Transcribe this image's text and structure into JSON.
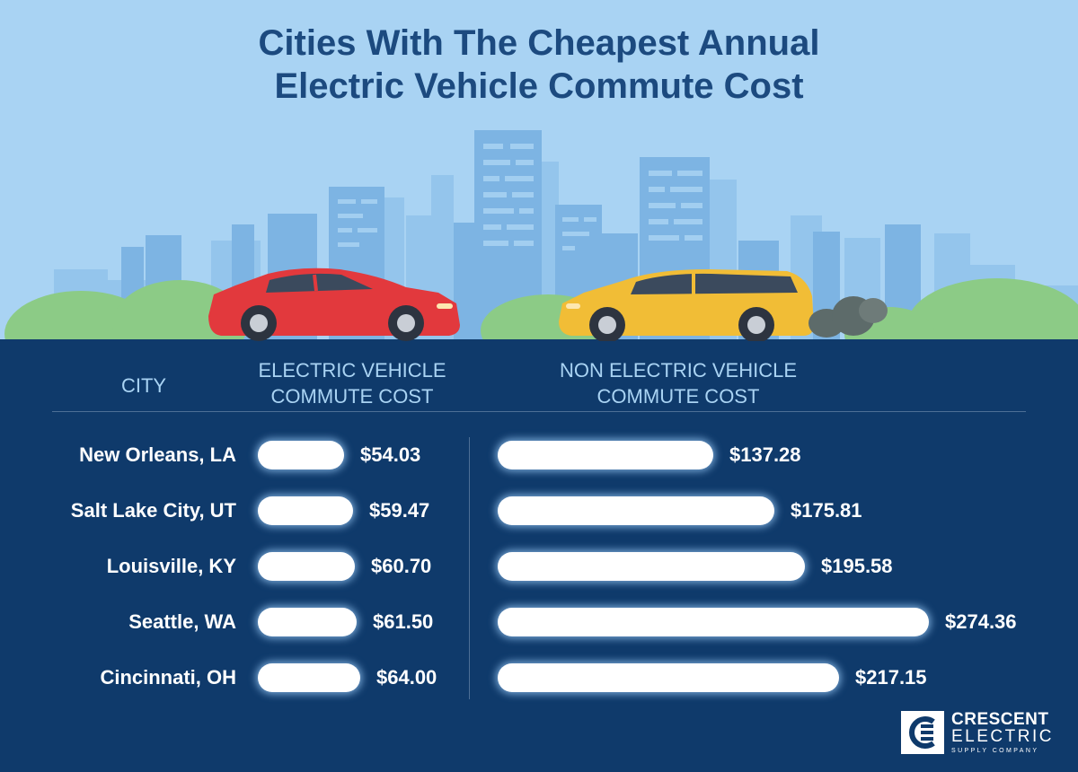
{
  "title": {
    "line1": "Cities With The Cheapest Annual",
    "line2": "Electric Vehicle Commute Cost"
  },
  "headers": {
    "city": "CITY",
    "ev_line1": "ELECTRIC VEHICLE",
    "ev_line2": "COMMUTE COST",
    "non_ev_line1": "NON ELECTRIC VEHICLE",
    "non_ev_line2": "COMMUTE COST"
  },
  "chart_data": {
    "type": "bar",
    "title": "Cities With The Cheapest Annual Electric Vehicle Commute Cost",
    "categories": [
      "New Orleans, LA",
      "Salt Lake City, UT",
      "Louisville, KY",
      "Seattle, WA",
      "Cincinnati, OH"
    ],
    "series": [
      {
        "name": "ELECTRIC VEHICLE COMMUTE COST",
        "values": [
          54.03,
          59.47,
          60.7,
          61.5,
          64.0
        ],
        "labels": [
          "$54.03",
          "$59.47",
          "$60.70",
          "$61.50",
          "$64.00"
        ]
      },
      {
        "name": "NON ELECTRIC VEHICLE COMMUTE COST",
        "values": [
          137.28,
          175.81,
          195.58,
          274.36,
          217.15
        ],
        "labels": [
          "$137.28",
          "$175.81",
          "$195.58",
          "$274.36",
          "$217.15"
        ]
      }
    ],
    "orientation": "horizontal",
    "xlabel": "",
    "ylabel": "CITY",
    "grid": false,
    "legend": "none"
  },
  "logo": {
    "name": "CRESCENT",
    "sub": "ELECTRIC",
    "tagline": "SUPPLY COMPANY"
  },
  "colors": {
    "sky": "#a9d3f3",
    "panel": "#0f3a6b",
    "title": "#1c4a7f",
    "header_text": "#a9d3f3",
    "bar": "#ffffff",
    "ev_car": "#e2393d",
    "gas_car": "#f1bd36",
    "bush": "#8ccb86"
  }
}
